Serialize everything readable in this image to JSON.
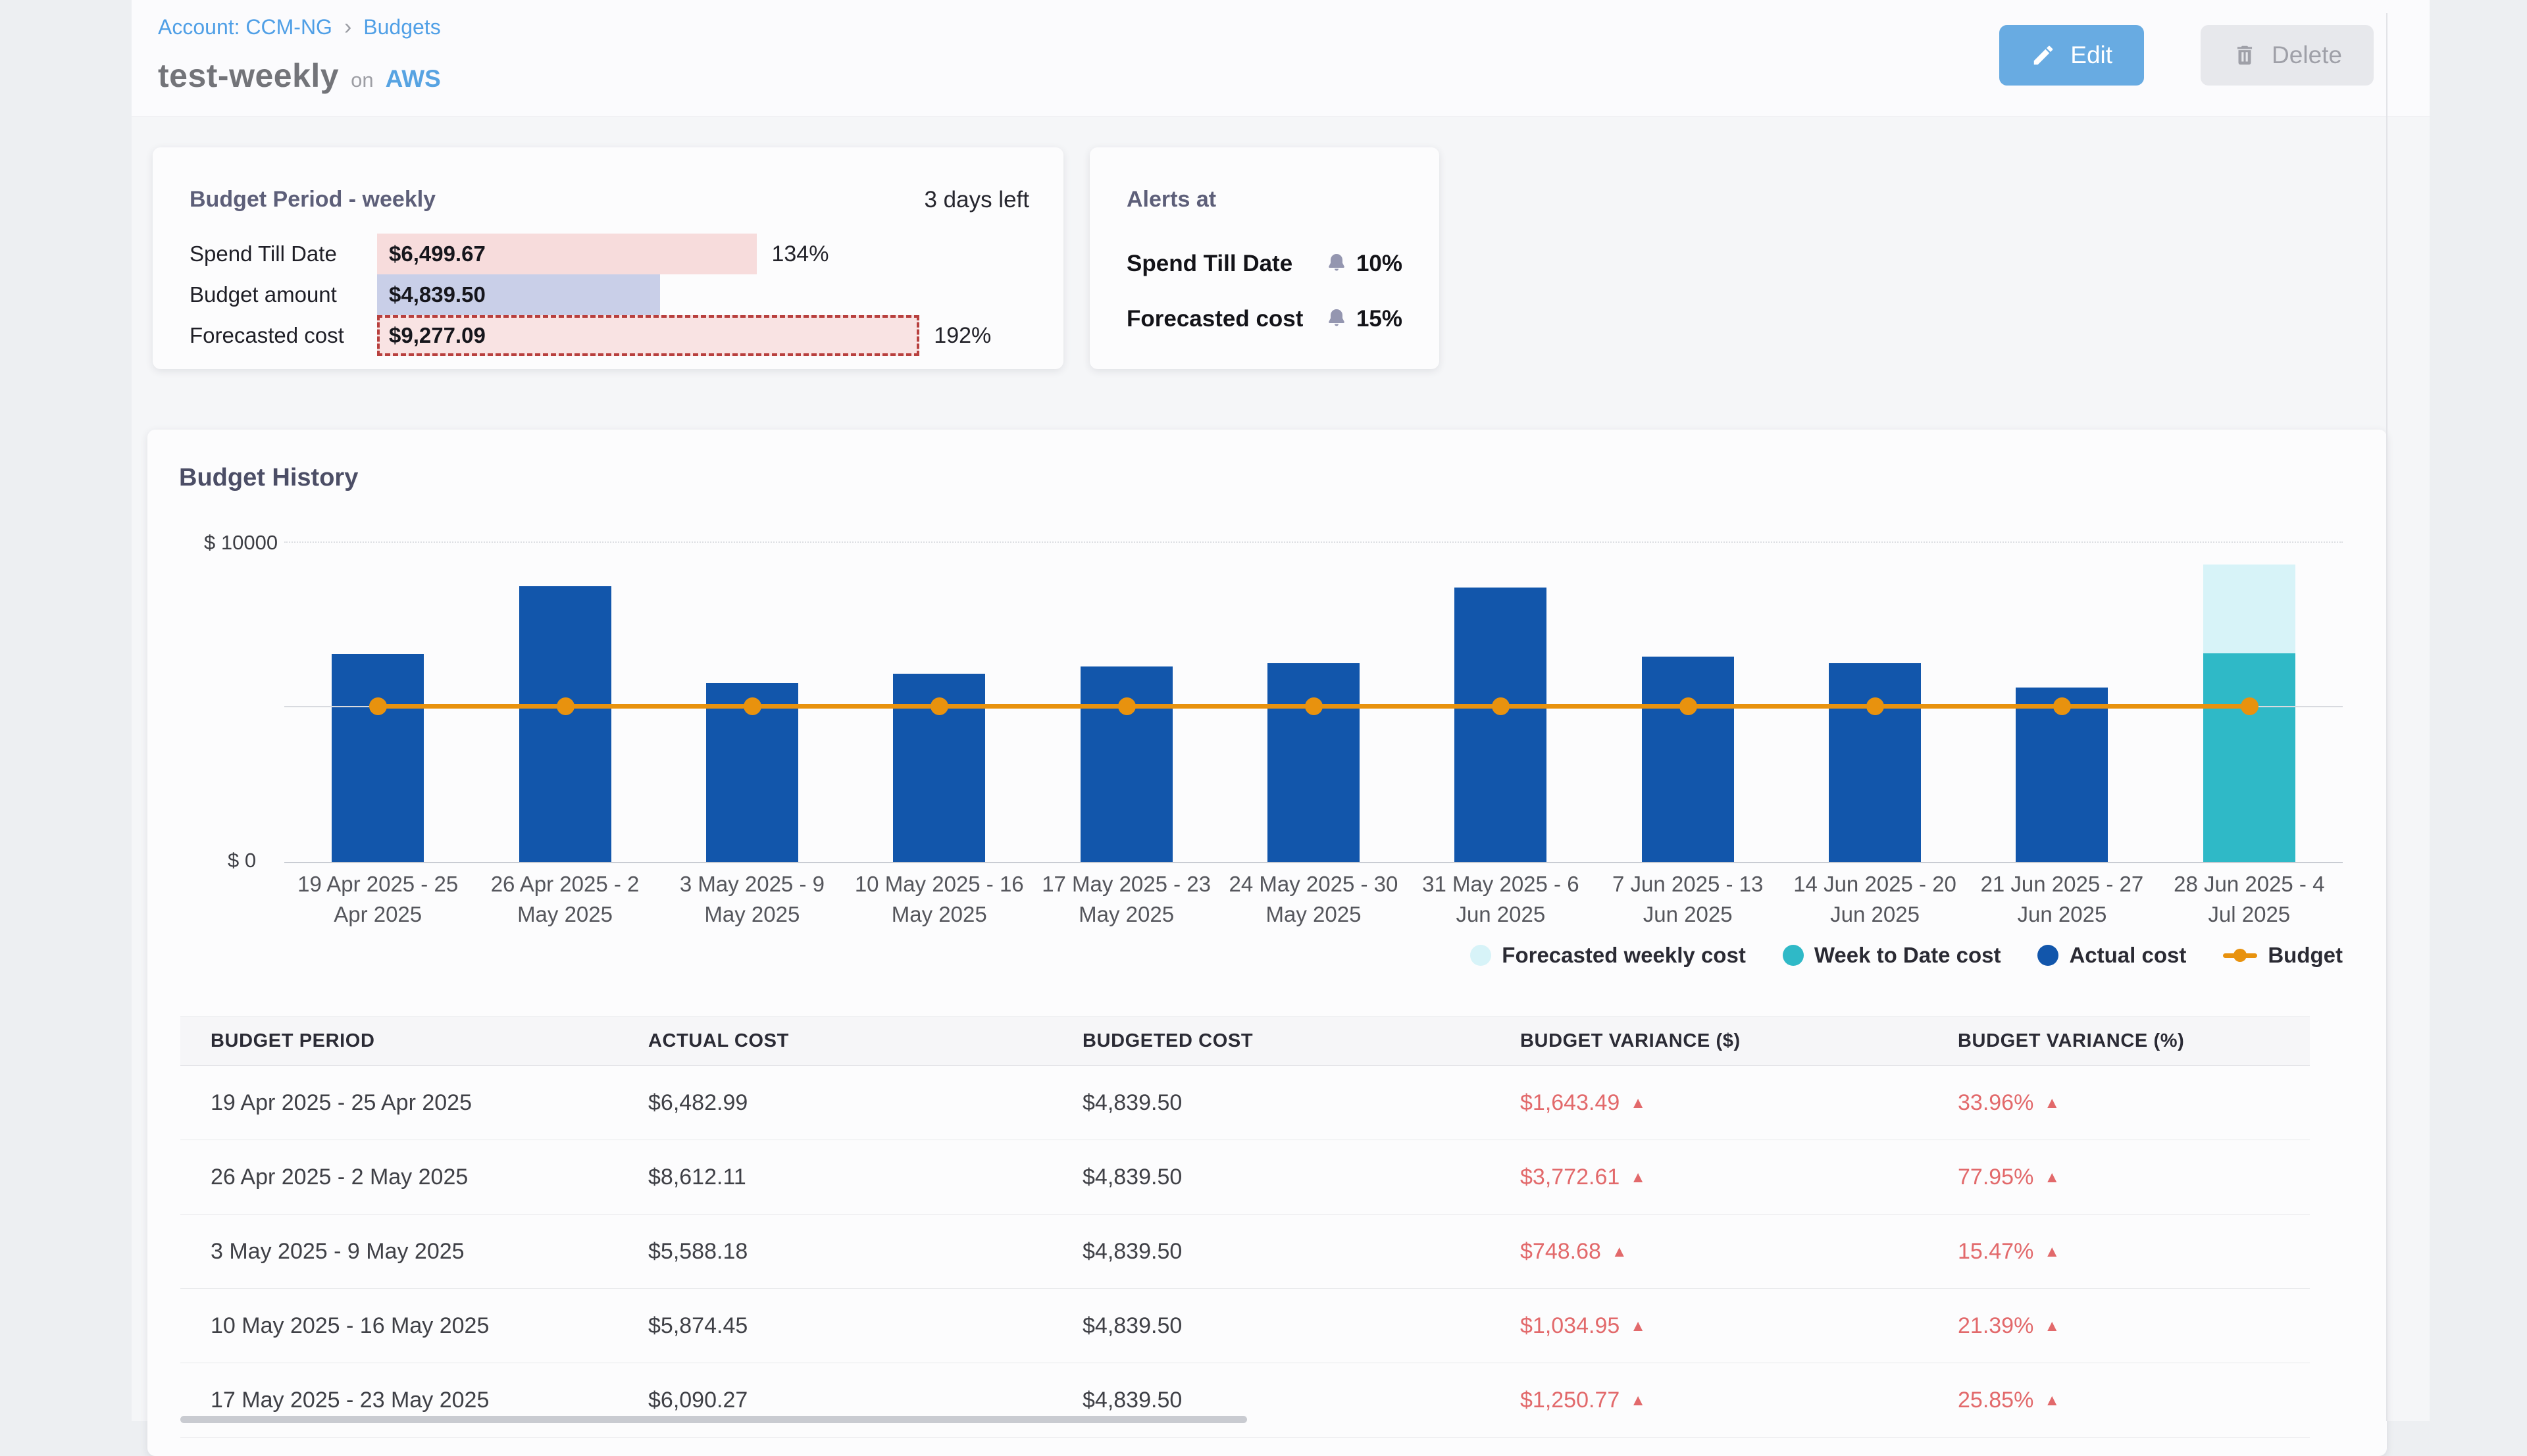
{
  "colors": {
    "link_blue": "#4f9fe6",
    "edit_button_bg": "#68abe2",
    "actual_cost": "#1256ab",
    "week_to_date": "#2fb9c7",
    "forecasted_weekly": "#d7f3f8",
    "budget_line": "#e8920e",
    "variance_red": "#e2696b",
    "mini_pink": "#f7dcdc",
    "mini_lavender": "#c9cfe8",
    "mini_dashed_border": "#b8403e"
  },
  "header": {
    "breadcrumb": {
      "account": "Account: CCM-NG",
      "separator": "›",
      "section": "Budgets"
    },
    "title": {
      "name": "test-weekly",
      "on": "on",
      "platform": "AWS"
    },
    "actions": {
      "edit": "Edit",
      "delete": "Delete"
    }
  },
  "budget_period_card": {
    "title": "Budget Period - weekly",
    "days_left": "3 days left",
    "rows": [
      {
        "label": "Spend Till Date",
        "value": "$6,499.67",
        "percent_label": "134%",
        "percent_of_budget": 134.3,
        "style": "pink"
      },
      {
        "label": "Budget amount",
        "value": "$4,839.50",
        "percent_label": "",
        "percent_of_budget": 100,
        "style": "lavender"
      },
      {
        "label": "Forecasted cost",
        "value": "$9,277.09",
        "percent_label": "192%",
        "percent_of_budget": 191.7,
        "style": "pink-dashed"
      }
    ]
  },
  "alerts_card": {
    "title": "Alerts at",
    "rows": [
      {
        "label": "Spend Till Date",
        "threshold": "10%"
      },
      {
        "label": "Forecasted cost",
        "threshold": "15%"
      }
    ]
  },
  "chart_data": {
    "type": "bar",
    "title": "Budget History",
    "ylabel": "$",
    "ylim": [
      0,
      10000
    ],
    "ytick_labels": [
      "$ 0",
      "$ 10000"
    ],
    "grid": "top-and-budget-level-only",
    "legend_position": "bottom-right",
    "categories": [
      "19 Apr 2025 - 25 Apr 2025",
      "26 Apr 2025 - 2 May 2025",
      "3 May 2025 - 9 May 2025",
      "10 May 2025 - 16 May 2025",
      "17 May 2025 - 23 May 2025",
      "24 May 2025 - 30 May 2025",
      "31 May 2025 - 6 Jun 2025",
      "7 Jun 2025 - 13 Jun 2025",
      "14 Jun 2025 - 20 Jun 2025",
      "21 Jun 2025 - 27 Jun 2025",
      "28 Jun 2025 - 4 Jul 2025"
    ],
    "series": [
      {
        "name": "Forecasted weekly cost",
        "type": "bar-stack-top",
        "color": "#d7f3f8",
        "values": [
          null,
          null,
          null,
          null,
          null,
          null,
          null,
          null,
          null,
          null,
          9277.09
        ]
      },
      {
        "name": "Week to Date cost",
        "type": "bar",
        "color": "#2fb9c7",
        "values": [
          null,
          null,
          null,
          null,
          null,
          null,
          null,
          null,
          null,
          null,
          6499.67
        ]
      },
      {
        "name": "Actual cost",
        "type": "bar",
        "color": "#1256ab",
        "values": [
          6482.99,
          8612.11,
          5588.18,
          5874.45,
          6090.27,
          6200,
          8560,
          6400,
          6200,
          5450,
          null
        ]
      },
      {
        "name": "Budget",
        "type": "line",
        "color": "#e8920e",
        "values": [
          4839.5,
          4839.5,
          4839.5,
          4839.5,
          4839.5,
          4839.5,
          4839.5,
          4839.5,
          4839.5,
          4839.5,
          4839.5
        ]
      }
    ]
  },
  "table": {
    "columns": [
      "BUDGET PERIOD",
      "ACTUAL COST",
      "BUDGETED COST",
      "BUDGET VARIANCE ($)",
      "BUDGET VARIANCE (%)"
    ],
    "up_arrow": "▲",
    "rows": [
      {
        "period": "19 Apr 2025 - 25 Apr 2025",
        "actual": "$6,482.99",
        "budgeted": "$4,839.50",
        "variance_usd": "$1,643.49",
        "variance_pct": "33.96%"
      },
      {
        "period": "26 Apr 2025 - 2 May 2025",
        "actual": "$8,612.11",
        "budgeted": "$4,839.50",
        "variance_usd": "$3,772.61",
        "variance_pct": "77.95%"
      },
      {
        "period": "3 May 2025 - 9 May 2025",
        "actual": "$5,588.18",
        "budgeted": "$4,839.50",
        "variance_usd": "$748.68",
        "variance_pct": "15.47%"
      },
      {
        "period": "10 May 2025 - 16 May 2025",
        "actual": "$5,874.45",
        "budgeted": "$4,839.50",
        "variance_usd": "$1,034.95",
        "variance_pct": "21.39%"
      },
      {
        "period": "17 May 2025 - 23 May 2025",
        "actual": "$6,090.27",
        "budgeted": "$4,839.50",
        "variance_usd": "$1,250.77",
        "variance_pct": "25.85%"
      }
    ]
  }
}
